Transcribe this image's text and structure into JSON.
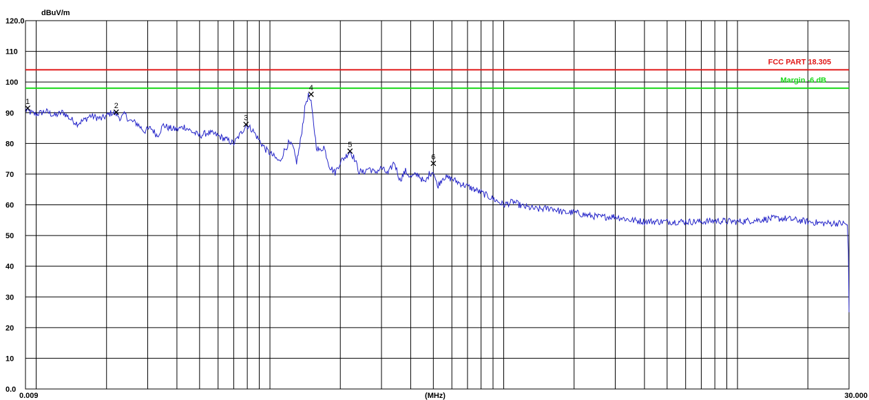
{
  "chart_data": {
    "type": "line",
    "title": "",
    "ylabel": "dBuV/m",
    "xlabel": "(MHz)",
    "x_scale": "log",
    "xlim": [
      0.009,
      30.0
    ],
    "ylim": [
      0,
      120
    ],
    "x_tick_labels": {
      "start": "0.009",
      "end": "30.000"
    },
    "y_tick_labels": [
      "0.0",
      "10",
      "20",
      "30",
      "40",
      "50",
      "60",
      "70",
      "80",
      "90",
      "100",
      "110",
      "120.0"
    ],
    "grid": true,
    "colors": {
      "trace": "#2323c8",
      "limit": "#e01818",
      "margin": "#18d818",
      "grid": "#000000"
    },
    "limits": [
      {
        "name": "FCC PART 18.305",
        "value": 104,
        "color": "#e01818"
      },
      {
        "name": "Margin -6 dB",
        "value": 98,
        "color": "#18d818"
      }
    ],
    "markers": [
      {
        "label": "1",
        "x": 0.0092,
        "y": 91.5
      },
      {
        "label": "2",
        "x": 0.022,
        "y": 90.2
      },
      {
        "label": "3",
        "x": 0.079,
        "y": 86.2
      },
      {
        "label": "4",
        "x": 0.15,
        "y": 96.0
      },
      {
        "label": "5",
        "x": 0.22,
        "y": 77.5
      },
      {
        "label": "6",
        "x": 0.5,
        "y": 73.5
      }
    ],
    "series": [
      {
        "values": [
          [
            0.009,
            91
          ],
          [
            0.0095,
            90
          ],
          [
            0.01,
            89.5
          ],
          [
            0.011,
            90.5
          ],
          [
            0.012,
            89
          ],
          [
            0.013,
            90.2
          ],
          [
            0.014,
            88
          ],
          [
            0.015,
            86.5
          ],
          [
            0.016,
            87.5
          ],
          [
            0.017,
            89
          ],
          [
            0.018,
            88.5
          ],
          [
            0.019,
            88
          ],
          [
            0.02,
            89
          ],
          [
            0.021,
            90
          ],
          [
            0.022,
            89.5
          ],
          [
            0.023,
            88.2
          ],
          [
            0.024,
            89.5
          ],
          [
            0.025,
            87.5
          ],
          [
            0.027,
            86.5
          ],
          [
            0.029,
            84
          ],
          [
            0.031,
            85
          ],
          [
            0.033,
            82.5
          ],
          [
            0.035,
            86
          ],
          [
            0.037,
            85
          ],
          [
            0.04,
            84.5
          ],
          [
            0.043,
            85.5
          ],
          [
            0.046,
            84
          ],
          [
            0.05,
            82.5
          ],
          [
            0.054,
            83.5
          ],
          [
            0.058,
            83
          ],
          [
            0.062,
            82
          ],
          [
            0.066,
            81
          ],
          [
            0.07,
            80
          ],
          [
            0.074,
            82.5
          ],
          [
            0.079,
            86
          ],
          [
            0.084,
            84.5
          ],
          [
            0.09,
            81
          ],
          [
            0.096,
            78
          ],
          [
            0.103,
            76
          ],
          [
            0.11,
            74
          ],
          [
            0.115,
            77.5
          ],
          [
            0.12,
            80
          ],
          [
            0.125,
            79
          ],
          [
            0.13,
            74
          ],
          [
            0.134,
            79
          ],
          [
            0.138,
            86
          ],
          [
            0.142,
            93
          ],
          [
            0.146,
            95.5
          ],
          [
            0.15,
            93
          ],
          [
            0.154,
            86
          ],
          [
            0.158,
            79
          ],
          [
            0.163,
            77.5
          ],
          [
            0.17,
            79
          ],
          [
            0.18,
            72.5
          ],
          [
            0.19,
            70.5
          ],
          [
            0.2,
            74
          ],
          [
            0.212,
            76
          ],
          [
            0.22,
            77.5
          ],
          [
            0.23,
            75
          ],
          [
            0.24,
            71
          ],
          [
            0.25,
            70.5
          ],
          [
            0.265,
            72
          ],
          [
            0.28,
            70.5
          ],
          [
            0.3,
            72
          ],
          [
            0.32,
            70
          ],
          [
            0.34,
            74
          ],
          [
            0.36,
            68
          ],
          [
            0.38,
            71
          ],
          [
            0.4,
            69
          ],
          [
            0.43,
            70
          ],
          [
            0.46,
            67
          ],
          [
            0.48,
            70
          ],
          [
            0.5,
            71
          ],
          [
            0.52,
            66
          ],
          [
            0.55,
            69
          ],
          [
            0.6,
            68.5
          ],
          [
            0.65,
            67
          ],
          [
            0.7,
            66
          ],
          [
            0.8,
            64
          ],
          [
            0.9,
            62
          ],
          [
            1.0,
            60
          ],
          [
            1.1,
            61
          ],
          [
            1.2,
            59.5
          ],
          [
            1.4,
            58.5
          ],
          [
            1.6,
            59
          ],
          [
            1.8,
            57.5
          ],
          [
            2.0,
            57.5
          ],
          [
            2.3,
            56.5
          ],
          [
            2.6,
            56
          ],
          [
            3.0,
            56.2
          ],
          [
            3.5,
            55
          ],
          [
            4.0,
            54.6
          ],
          [
            5.0,
            54.5
          ],
          [
            6.0,
            54.5
          ],
          [
            7.0,
            54.5
          ],
          [
            8.0,
            54.8
          ],
          [
            10.0,
            54.5
          ],
          [
            12.0,
            55
          ],
          [
            14.0,
            55.5
          ],
          [
            16.0,
            55.5
          ],
          [
            18.0,
            55
          ],
          [
            20.0,
            54.5
          ],
          [
            23.0,
            54
          ],
          [
            25.0,
            54
          ],
          [
            27.0,
            54
          ],
          [
            29.0,
            53.8
          ],
          [
            29.5,
            53.5
          ],
          [
            29.8,
            45
          ],
          [
            30.0,
            25
          ]
        ]
      }
    ]
  }
}
